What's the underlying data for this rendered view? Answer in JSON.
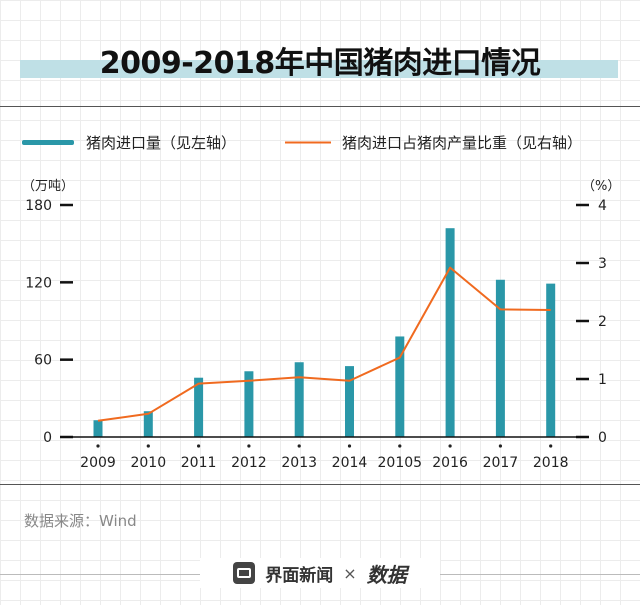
{
  "page": {
    "title": "2009-2018年中国猪肉进口情况",
    "source": "数据来源：Wind",
    "footer": {
      "brand": "界面新闻",
      "separator": "×",
      "logo": "数据"
    }
  },
  "colors": {
    "bar": "#2a97a8",
    "line": "#f06a1f",
    "title_band": "#bfe0e6"
  },
  "chart_data": {
    "type": "bar",
    "categories": [
      "2009",
      "2010",
      "2011",
      "2012",
      "2013",
      "2014",
      "20105",
      "2016",
      "2017",
      "2018"
    ],
    "series": [
      {
        "name": "猪肉进口量（见左轴）",
        "type": "bar",
        "axis": "left",
        "values": [
          13,
          20,
          46,
          51,
          58,
          55,
          78,
          162,
          122,
          119
        ]
      },
      {
        "name": "猪肉进口占猪肉产量比重（见右轴）",
        "type": "line",
        "axis": "right",
        "values": [
          0.28,
          0.4,
          0.92,
          0.97,
          1.03,
          0.97,
          1.37,
          2.92,
          2.2,
          2.19
        ]
      }
    ],
    "y_left": {
      "label": "（万吨）",
      "ticks": [
        0,
        60,
        120,
        180
      ],
      "range": [
        0,
        180
      ]
    },
    "y_right": {
      "label": "（%）",
      "ticks": [
        0,
        1,
        2,
        3,
        4
      ],
      "range": [
        0,
        4
      ]
    },
    "legend_position": "top"
  }
}
